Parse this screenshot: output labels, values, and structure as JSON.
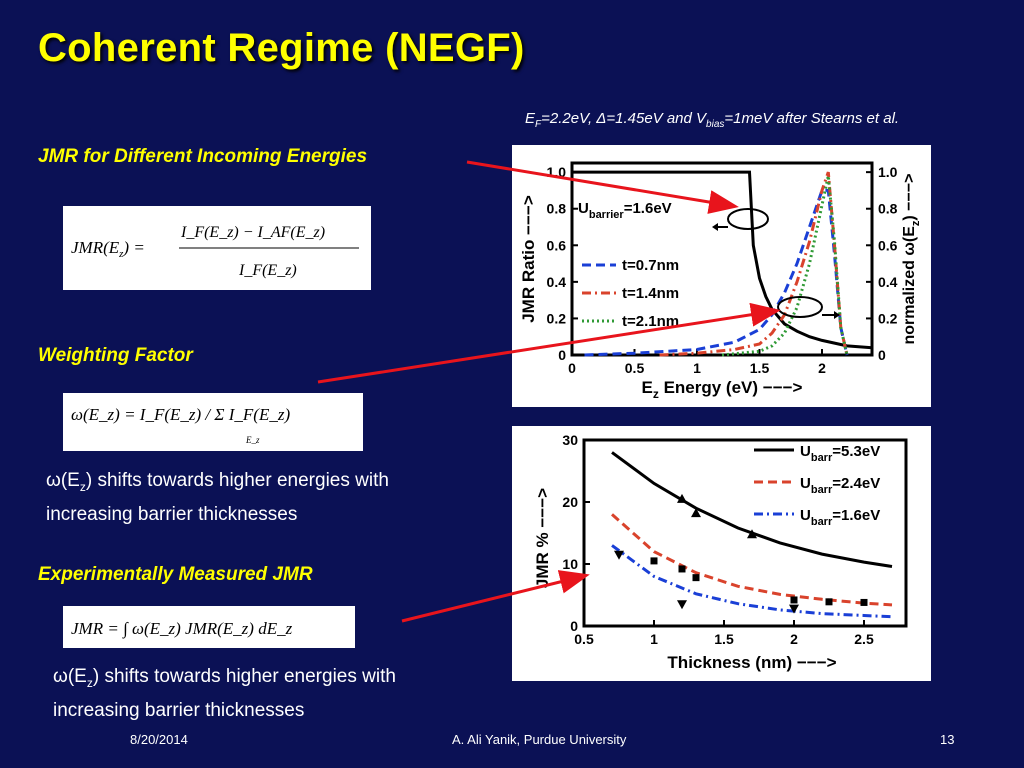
{
  "slide": {
    "title": "Coherent Regime (NEGF)",
    "params": {
      "ef_pre": "E",
      "ef_sub": "F",
      "ef_rest": "=2.2eV, Δ=1.45eV and V",
      "bias_sub": "bias",
      "bias_rest": "=1meV after Stearns et al."
    },
    "sections": [
      {
        "heading": "JMR for Different Incoming Energies"
      },
      {
        "heading": "Weighting Factor"
      },
      {
        "heading": "Experimentally Measured JMR"
      }
    ],
    "notes": [
      {
        "pre": "ω(E",
        "sub": "z",
        "post": ") shifts towards higher energies with",
        "line2": "increasing barrier thicknesses"
      },
      {
        "pre": "ω(E",
        "sub": "z",
        "post": ") shifts towards higher energies with",
        "line2": "increasing barrier thicknesses"
      }
    ],
    "footer": {
      "date": "8/20/2014",
      "author": "A. Ali Yanik, Purdue University",
      "page": "13"
    }
  },
  "equations": {
    "jmr_lhs": "JMR(E",
    "jmr_lhs_sub": "z",
    "jmr_lhs_end": ") =",
    "jmr_num": "I_F(E_z) − I_AF(E_z)",
    "jmr_den": "I_F(E_z)",
    "omega": "ω(E_z) = I_F(E_z) / Σ I_F(E_z)",
    "sum_sub": "E_z",
    "jmr_meas": "JMR = ∫ ω(E_z) JMR(E_z) dE_z"
  },
  "colors": {
    "background": "#0b1155",
    "heading": "#ffff00",
    "arrow": "#e8141c"
  },
  "chart_data": [
    {
      "type": "line",
      "xlabel_pre": "E",
      "xlabel_sub": "z",
      "xlabel_post": " Energy (eV) −−−>",
      "ylabel": "JMR Ratio −−−>",
      "y2label_pre": "normalized  ω(E",
      "y2label_sub": "z",
      "y2label_post": ") −−−>",
      "xlim": [
        0,
        2.4
      ],
      "ylim": [
        0,
        1.05
      ],
      "xticks": [
        "0",
        "0.5",
        "1",
        "1.5",
        "2"
      ],
      "yticks": [
        "0",
        "0.2",
        "0.4",
        "0.6",
        "0.8",
        "1.0"
      ],
      "y2ticks": [
        "0",
        "0.2",
        "0.4",
        "0.6",
        "0.8",
        "1.0"
      ],
      "annotation": {
        "pre": "U",
        "sub": "barrier",
        "post": "=1.6eV"
      },
      "series": [
        {
          "name": "",
          "style": "solid",
          "color": "#000000",
          "x": [
            0,
            1.42,
            1.45,
            1.5,
            1.55,
            1.6,
            1.7,
            1.8,
            1.9,
            2.0,
            2.1,
            2.2,
            2.4
          ],
          "y": [
            1.0,
            1.0,
            0.6,
            0.42,
            0.32,
            0.25,
            0.17,
            0.13,
            0.1,
            0.08,
            0.065,
            0.05,
            0.04
          ]
        },
        {
          "name": "t=0.7nm",
          "style": "dash",
          "color": "#1a3fd6",
          "x": [
            0.1,
            0.5,
            1.0,
            1.3,
            1.5,
            1.6,
            1.7,
            1.8,
            1.9,
            2.0,
            2.05,
            2.1,
            2.15,
            2.2
          ],
          "y": [
            0,
            0.01,
            0.03,
            0.07,
            0.14,
            0.22,
            0.34,
            0.5,
            0.7,
            0.9,
            0.9,
            0.55,
            0.15,
            0
          ]
        },
        {
          "name": "t=1.4nm",
          "style": "dashdot",
          "color": "#d9432c",
          "x": [
            0.7,
            1.0,
            1.3,
            1.5,
            1.6,
            1.7,
            1.8,
            1.9,
            2.0,
            2.05,
            2.1,
            2.15,
            2.2
          ],
          "y": [
            0,
            0.01,
            0.03,
            0.06,
            0.12,
            0.22,
            0.4,
            0.62,
            0.9,
            1.0,
            0.6,
            0.15,
            0
          ]
        },
        {
          "name": "t=2.1nm",
          "style": "dot",
          "color": "#2f9a35",
          "x": [
            1.2,
            1.5,
            1.6,
            1.7,
            1.8,
            1.9,
            2.0,
            2.05,
            2.1,
            2.15,
            2.2
          ],
          "y": [
            0,
            0.02,
            0.05,
            0.12,
            0.26,
            0.5,
            0.82,
            0.98,
            0.62,
            0.15,
            0
          ]
        }
      ]
    },
    {
      "type": "line",
      "xlabel": "Thickness (nm) −−−>",
      "ylabel": "JMR % −−−>",
      "xlim": [
        0.5,
        2.8
      ],
      "ylim": [
        0,
        30
      ],
      "xticks": [
        "0.5",
        "1",
        "1.5",
        "2",
        "2.5"
      ],
      "yticks": [
        "0",
        "10",
        "20",
        "30"
      ],
      "series": [
        {
          "name_pre": "U",
          "name_sub": "barr",
          "name_post": "=5.3eV",
          "style": "solid",
          "color": "#000000",
          "x": [
            0.7,
            1.0,
            1.3,
            1.6,
            1.9,
            2.2,
            2.5,
            2.7
          ],
          "y": [
            28,
            23,
            19,
            15.8,
            13.4,
            11.6,
            10.3,
            9.6
          ],
          "markers": {
            "shape": "triangle-up",
            "x": [
              1.2,
              1.3,
              1.7
            ],
            "y": [
              20.5,
              18.2,
              14.8
            ]
          }
        },
        {
          "name_pre": "U",
          "name_sub": "barr",
          "name_post": "=2.4eV",
          "style": "dash",
          "color": "#d9432c",
          "x": [
            0.7,
            1.0,
            1.3,
            1.6,
            1.9,
            2.2,
            2.5,
            2.7
          ],
          "y": [
            18,
            12,
            8.6,
            6.4,
            5.1,
            4.3,
            3.7,
            3.4
          ],
          "markers": {
            "shape": "square",
            "x": [
              1.0,
              1.2,
              1.3,
              2.0,
              2.25,
              2.5
            ],
            "y": [
              10.5,
              9.2,
              7.8,
              4.2,
              3.9,
              3.8
            ]
          }
        },
        {
          "name_pre": "U",
          "name_sub": "barr",
          "name_post": "=1.6eV",
          "style": "dashdot",
          "color": "#1a3fd6",
          "x": [
            0.7,
            1.0,
            1.3,
            1.6,
            1.9,
            2.2,
            2.5,
            2.7
          ],
          "y": [
            13,
            8,
            5.2,
            3.6,
            2.6,
            2.0,
            1.7,
            1.5
          ],
          "markers": {
            "shape": "triangle-down",
            "x": [
              0.75,
              1.2,
              2.0
            ],
            "y": [
              11.5,
              3.5,
              2.8
            ]
          }
        }
      ]
    }
  ]
}
